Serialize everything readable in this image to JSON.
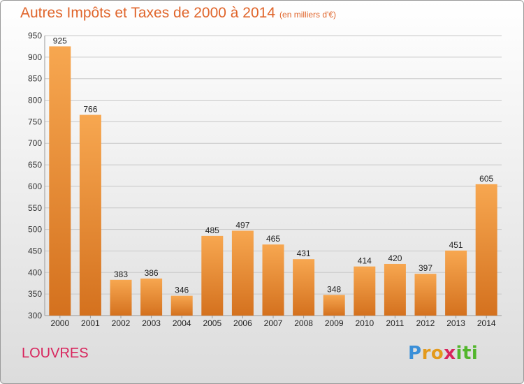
{
  "title": "Autres Impôts et Taxes de 2000 à 2014",
  "subtitle": "(en milliers d'€)",
  "town": "LOUVRES",
  "logo": {
    "letters": [
      "P",
      "r",
      "o",
      "x",
      "i",
      "t",
      "i"
    ],
    "colors": [
      "#3a8fd8",
      "#e39a1d",
      "#e39a1d",
      "#d8245c",
      "#52b62c",
      "#52b62c",
      "#52b62c"
    ]
  },
  "colors": {
    "accent": "#e0652b",
    "bar_top": "#f7a750",
    "bar_bottom": "#d4711e",
    "town": "#d8245c"
  },
  "chart_data": {
    "type": "bar",
    "title": "Autres Impôts et Taxes de 2000 à 2014",
    "xlabel": "",
    "ylabel": "",
    "categories": [
      "2000",
      "2001",
      "2002",
      "2003",
      "2004",
      "2005",
      "2006",
      "2007",
      "2008",
      "2009",
      "2010",
      "2011",
      "2012",
      "2013",
      "2014"
    ],
    "values": [
      925,
      766,
      383,
      386,
      346,
      485,
      497,
      465,
      431,
      348,
      414,
      420,
      397,
      451,
      605
    ],
    "ylim": [
      300,
      950
    ],
    "yticks": [
      300,
      350,
      400,
      450,
      500,
      550,
      600,
      650,
      700,
      750,
      800,
      850,
      900,
      950
    ],
    "grid": true
  }
}
